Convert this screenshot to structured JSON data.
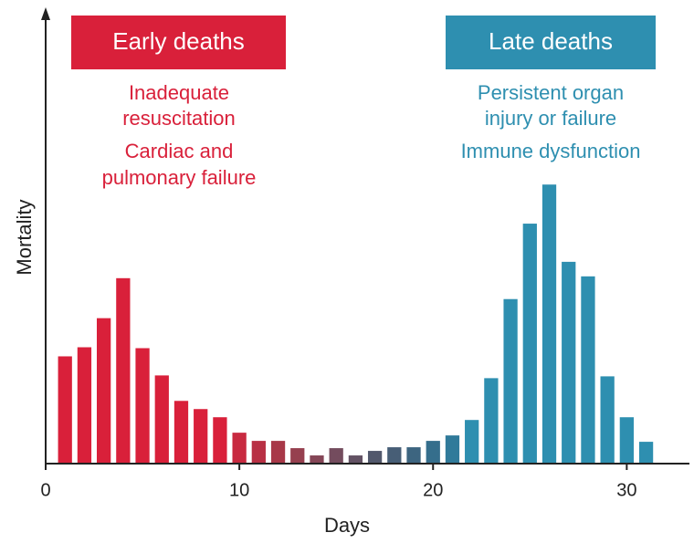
{
  "chart_data": {
    "type": "bar",
    "x_label": "Days",
    "y_label": "Mortality",
    "x": [
      1,
      2,
      3,
      4,
      5,
      6,
      7,
      8,
      9,
      10,
      11,
      12,
      13,
      14,
      15,
      16,
      17,
      18,
      19,
      20,
      21,
      22,
      23,
      24,
      25,
      26,
      27,
      28,
      29,
      30,
      31
    ],
    "values": [
      118,
      128,
      160,
      204,
      127,
      97,
      69,
      60,
      51,
      34,
      25,
      25,
      17,
      9,
      17,
      9,
      14,
      18,
      18,
      25,
      31,
      48,
      94,
      181,
      264,
      307,
      222,
      206,
      96,
      51,
      24
    ],
    "colors": [
      "#d9203a",
      "#d9203a",
      "#d9203a",
      "#d9203a",
      "#d9203a",
      "#d9203a",
      "#d9203a",
      "#d9203a",
      "#d9203a",
      "#c82a40",
      "#b83044",
      "#a83848",
      "#96404f",
      "#854657",
      "#744c5e",
      "#635264",
      "#52586c",
      "#475e76",
      "#3d6580",
      "#356e8c",
      "#307a9a",
      "#2e8fb0",
      "#2e8fb0",
      "#2e8fb0",
      "#2e8fb0",
      "#2e8fb0",
      "#2e8fb0",
      "#2e8fb0",
      "#2e8fb0",
      "#2e8fb0",
      "#2e8fb0"
    ],
    "xlim": [
      0,
      33
    ],
    "ylim": [
      0,
      500
    ],
    "xticks": [
      0,
      10,
      20,
      30
    ],
    "annotations": [
      {
        "title": "Early deaths",
        "color": "#d9203a",
        "lines": [
          "Inadequate",
          "resuscitation",
          "Cardiac and",
          "pulmonary failure"
        ]
      },
      {
        "title": "Late deaths",
        "color": "#2e8fb0",
        "lines": [
          "Persistent organ",
          "injury or failure",
          "Immune dysfunction"
        ]
      }
    ]
  }
}
